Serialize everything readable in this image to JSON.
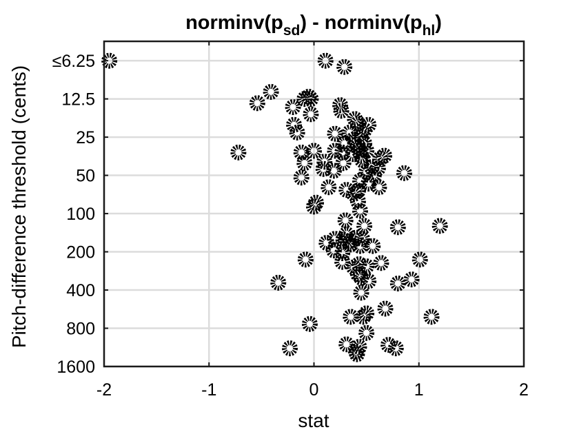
{
  "chart_data": {
    "type": "scatter",
    "title_parts": [
      "norminv(p",
      "sd",
      ") - norminv(p",
      "hl",
      ")"
    ],
    "xlabel": "stat",
    "ylabel": "Pitch-difference threshold (cents)",
    "xlim": [
      -2,
      2
    ],
    "x_ticks": [
      -2,
      -1,
      0,
      1,
      2
    ],
    "x_tick_labels": [
      "-2",
      "-1",
      "0",
      "1",
      "2"
    ],
    "y_scale": "log2",
    "ylim": [
      4.4,
      1600
    ],
    "y_ticks": [
      6.25,
      12.5,
      25,
      50,
      100,
      200,
      400,
      800,
      1600
    ],
    "y_tick_labels": [
      "≤6.25",
      "12.5",
      "25",
      "50",
      "100",
      "200",
      "400",
      "800",
      "1600"
    ],
    "grid": true,
    "marker": "open-circle",
    "points": [
      {
        "x": -1.95,
        "y": 6.25
      },
      {
        "x": 0.11,
        "y": 6.25
      },
      {
        "x": 0.29,
        "y": 7.0
      },
      {
        "x": -0.41,
        "y": 11.0
      },
      {
        "x": -0.54,
        "y": 13.5
      },
      {
        "x": -0.05,
        "y": 12.0
      },
      {
        "x": -0.09,
        "y": 12.5
      },
      {
        "x": -0.03,
        "y": 12.5
      },
      {
        "x": -0.2,
        "y": 14.5
      },
      {
        "x": 0.25,
        "y": 14.0
      },
      {
        "x": 0.26,
        "y": 15.5
      },
      {
        "x": -0.03,
        "y": 16.5
      },
      {
        "x": -0.19,
        "y": 20.0
      },
      {
        "x": 0.39,
        "y": 18.0
      },
      {
        "x": 0.42,
        "y": 19.5
      },
      {
        "x": 0.52,
        "y": 20.0
      },
      {
        "x": 0.48,
        "y": 22.0
      },
      {
        "x": 0.34,
        "y": 23.0
      },
      {
        "x": -0.16,
        "y": 23.0
      },
      {
        "x": 0.2,
        "y": 23.5
      },
      {
        "x": 0.45,
        "y": 25.0
      },
      {
        "x": 0.38,
        "y": 26.0
      },
      {
        "x": 0.29,
        "y": 28.0
      },
      {
        "x": 0.48,
        "y": 28.0
      },
      {
        "x": 0.41,
        "y": 29.5
      },
      {
        "x": -0.72,
        "y": 33.0
      },
      {
        "x": -0.12,
        "y": 33.0
      },
      {
        "x": 0.0,
        "y": 32.0
      },
      {
        "x": 0.2,
        "y": 32.0
      },
      {
        "x": 0.27,
        "y": 33.0
      },
      {
        "x": 0.43,
        "y": 32.0
      },
      {
        "x": 0.5,
        "y": 32.0
      },
      {
        "x": 0.37,
        "y": 34.0
      },
      {
        "x": 0.45,
        "y": 35.0
      },
      {
        "x": 0.67,
        "y": 35.0
      },
      {
        "x": 0.63,
        "y": 37.0
      },
      {
        "x": 0.46,
        "y": 38.0
      },
      {
        "x": -0.09,
        "y": 40.0
      },
      {
        "x": 0.1,
        "y": 39.0
      },
      {
        "x": 0.28,
        "y": 40.0
      },
      {
        "x": 0.55,
        "y": 43.0
      },
      {
        "x": 0.61,
        "y": 44.0
      },
      {
        "x": 0.09,
        "y": 44.5
      },
      {
        "x": 0.19,
        "y": 46.0
      },
      {
        "x": 0.5,
        "y": 47.0
      },
      {
        "x": 0.57,
        "y": 50.0
      },
      {
        "x": 0.86,
        "y": 48.0
      },
      {
        "x": -0.12,
        "y": 52.0
      },
      {
        "x": 0.44,
        "y": 55.0
      },
      {
        "x": 0.52,
        "y": 58.0
      },
      {
        "x": 0.62,
        "y": 62.0
      },
      {
        "x": 0.14,
        "y": 62.0
      },
      {
        "x": 0.31,
        "y": 65.0
      },
      {
        "x": 0.42,
        "y": 66.0
      },
      {
        "x": 0.38,
        "y": 70.0
      },
      {
        "x": 0.42,
        "y": 80.0
      },
      {
        "x": 0.02,
        "y": 82.0
      },
      {
        "x": 0.0,
        "y": 88.0
      },
      {
        "x": 0.44,
        "y": 95.0
      },
      {
        "x": 0.3,
        "y": 113.0
      },
      {
        "x": 0.48,
        "y": 125.0
      },
      {
        "x": 0.8,
        "y": 128.0
      },
      {
        "x": 1.2,
        "y": 125.0
      },
      {
        "x": 0.31,
        "y": 145.0
      },
      {
        "x": 0.4,
        "y": 155.0
      },
      {
        "x": 0.12,
        "y": 170.0
      },
      {
        "x": 0.2,
        "y": 158.0
      },
      {
        "x": 0.28,
        "y": 160.0
      },
      {
        "x": 0.33,
        "y": 165.0
      },
      {
        "x": 0.46,
        "y": 158.0
      },
      {
        "x": 0.35,
        "y": 175.0
      },
      {
        "x": 0.44,
        "y": 180.0
      },
      {
        "x": 0.19,
        "y": 195.0
      },
      {
        "x": 0.27,
        "y": 205.0
      },
      {
        "x": 0.56,
        "y": 180.0
      },
      {
        "x": -0.08,
        "y": 230.0
      },
      {
        "x": 0.27,
        "y": 240.0
      },
      {
        "x": 0.43,
        "y": 250.0
      },
      {
        "x": 0.64,
        "y": 245.0
      },
      {
        "x": 1.01,
        "y": 230.0
      },
      {
        "x": 0.38,
        "y": 265.0
      },
      {
        "x": 0.5,
        "y": 260.0
      },
      {
        "x": 0.42,
        "y": 300.0
      },
      {
        "x": 0.45,
        "y": 320.0
      },
      {
        "x": 0.52,
        "y": 340.0
      },
      {
        "x": 0.8,
        "y": 355.0
      },
      {
        "x": 0.93,
        "y": 330.0
      },
      {
        "x": -0.34,
        "y": 350.0
      },
      {
        "x": 0.45,
        "y": 420.0
      },
      {
        "x": 0.68,
        "y": 560.0
      },
      {
        "x": 0.5,
        "y": 610.0
      },
      {
        "x": 0.35,
        "y": 650.0
      },
      {
        "x": 0.47,
        "y": 650.0
      },
      {
        "x": 1.12,
        "y": 650.0
      },
      {
        "x": -0.04,
        "y": 740.0
      },
      {
        "x": 0.5,
        "y": 870.0
      },
      {
        "x": 0.31,
        "y": 1070.0
      },
      {
        "x": 0.43,
        "y": 1120.0
      },
      {
        "x": 0.71,
        "y": 1080.0
      },
      {
        "x": 0.78,
        "y": 1150.0
      },
      {
        "x": -0.23,
        "y": 1150.0
      },
      {
        "x": 0.4,
        "y": 1220.0
      },
      {
        "x": 0.41,
        "y": 1280.0
      }
    ]
  }
}
